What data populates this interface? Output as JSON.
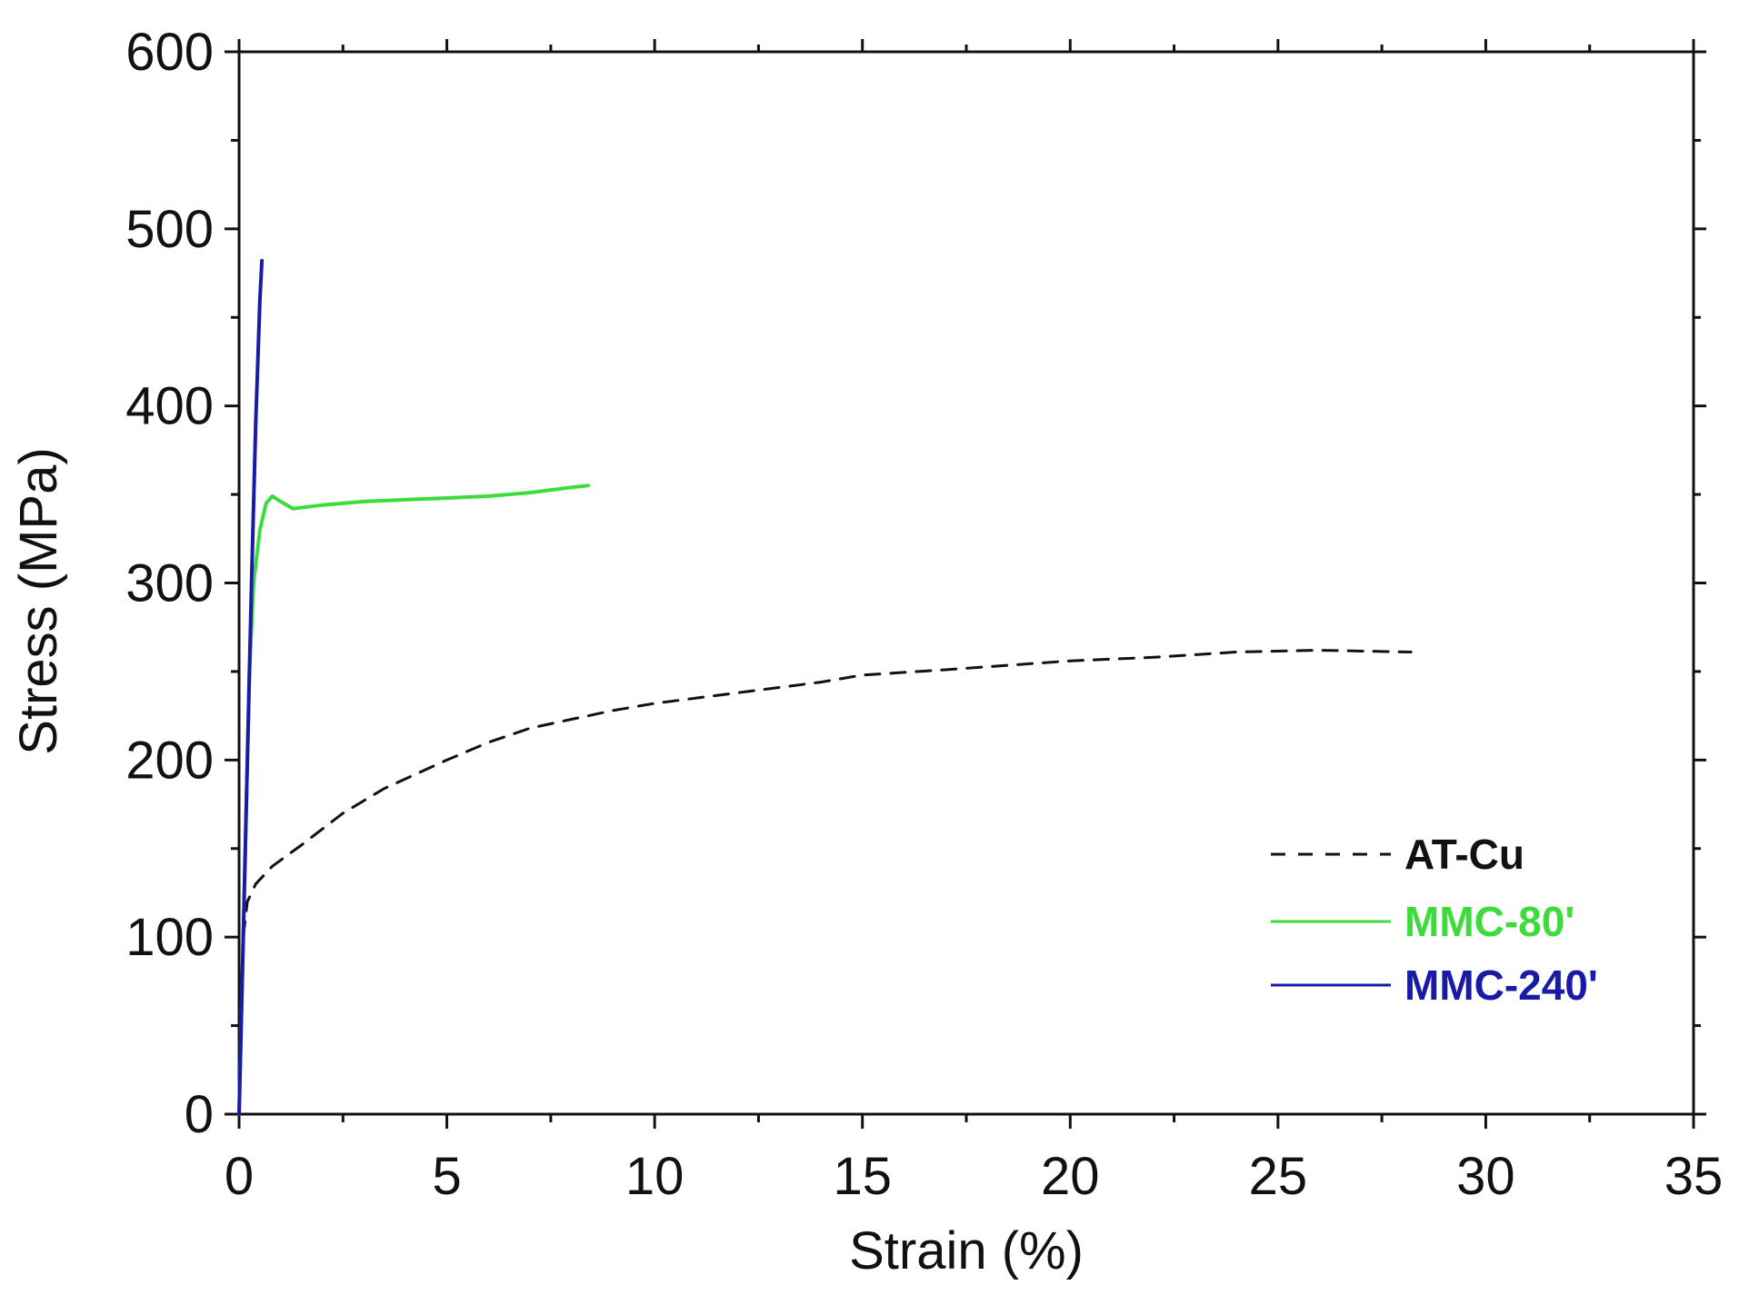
{
  "chart_data": {
    "type": "line",
    "title": "",
    "xlabel": "Strain (%)",
    "ylabel": "Stress (MPa)",
    "xlim": [
      0,
      35
    ],
    "ylim": [
      0,
      600
    ],
    "xticks": [
      0,
      5,
      10,
      15,
      20,
      25,
      30,
      35
    ],
    "yticks": [
      0,
      100,
      200,
      300,
      400,
      500,
      600
    ],
    "xtick_labels": [
      "0",
      "5",
      "10",
      "15",
      "20",
      "25",
      "30",
      "35"
    ],
    "ytick_labels": [
      "0",
      "100",
      "200",
      "300",
      "400",
      "500",
      "600"
    ],
    "legend_position": "bottom-right",
    "grid": false,
    "series": [
      {
        "name": "AT-Cu",
        "color": "#111111",
        "style": "dashed",
        "x": [
          0,
          0.1,
          0.2,
          0.4,
          0.8,
          1.5,
          2.5,
          3.5,
          5,
          6,
          7,
          8,
          9,
          10,
          12,
          14,
          15,
          17,
          20,
          22,
          24,
          26,
          28.2
        ],
        "y": [
          0,
          100,
          120,
          130,
          140,
          152,
          170,
          184,
          200,
          210,
          218,
          223,
          228,
          232,
          238,
          244,
          248,
          251,
          256,
          258,
          261,
          262,
          261
        ]
      },
      {
        "name": "MMC-80'",
        "color": "#3ddc3d",
        "style": "solid",
        "x": [
          0,
          0.15,
          0.25,
          0.35,
          0.5,
          0.65,
          0.8,
          1.0,
          1.3,
          2,
          3,
          4,
          5,
          6,
          7,
          8,
          8.4
        ],
        "y": [
          0,
          150,
          250,
          300,
          330,
          345,
          349,
          346,
          342,
          344,
          346,
          347,
          348,
          349,
          351,
          354,
          355
        ]
      },
      {
        "name": "MMC-240'",
        "color": "#1a1aa8",
        "style": "solid",
        "x": [
          0,
          0.1,
          0.2,
          0.3,
          0.4,
          0.5,
          0.55
        ],
        "y": [
          0,
          100,
          200,
          300,
          390,
          460,
          482
        ]
      }
    ]
  }
}
